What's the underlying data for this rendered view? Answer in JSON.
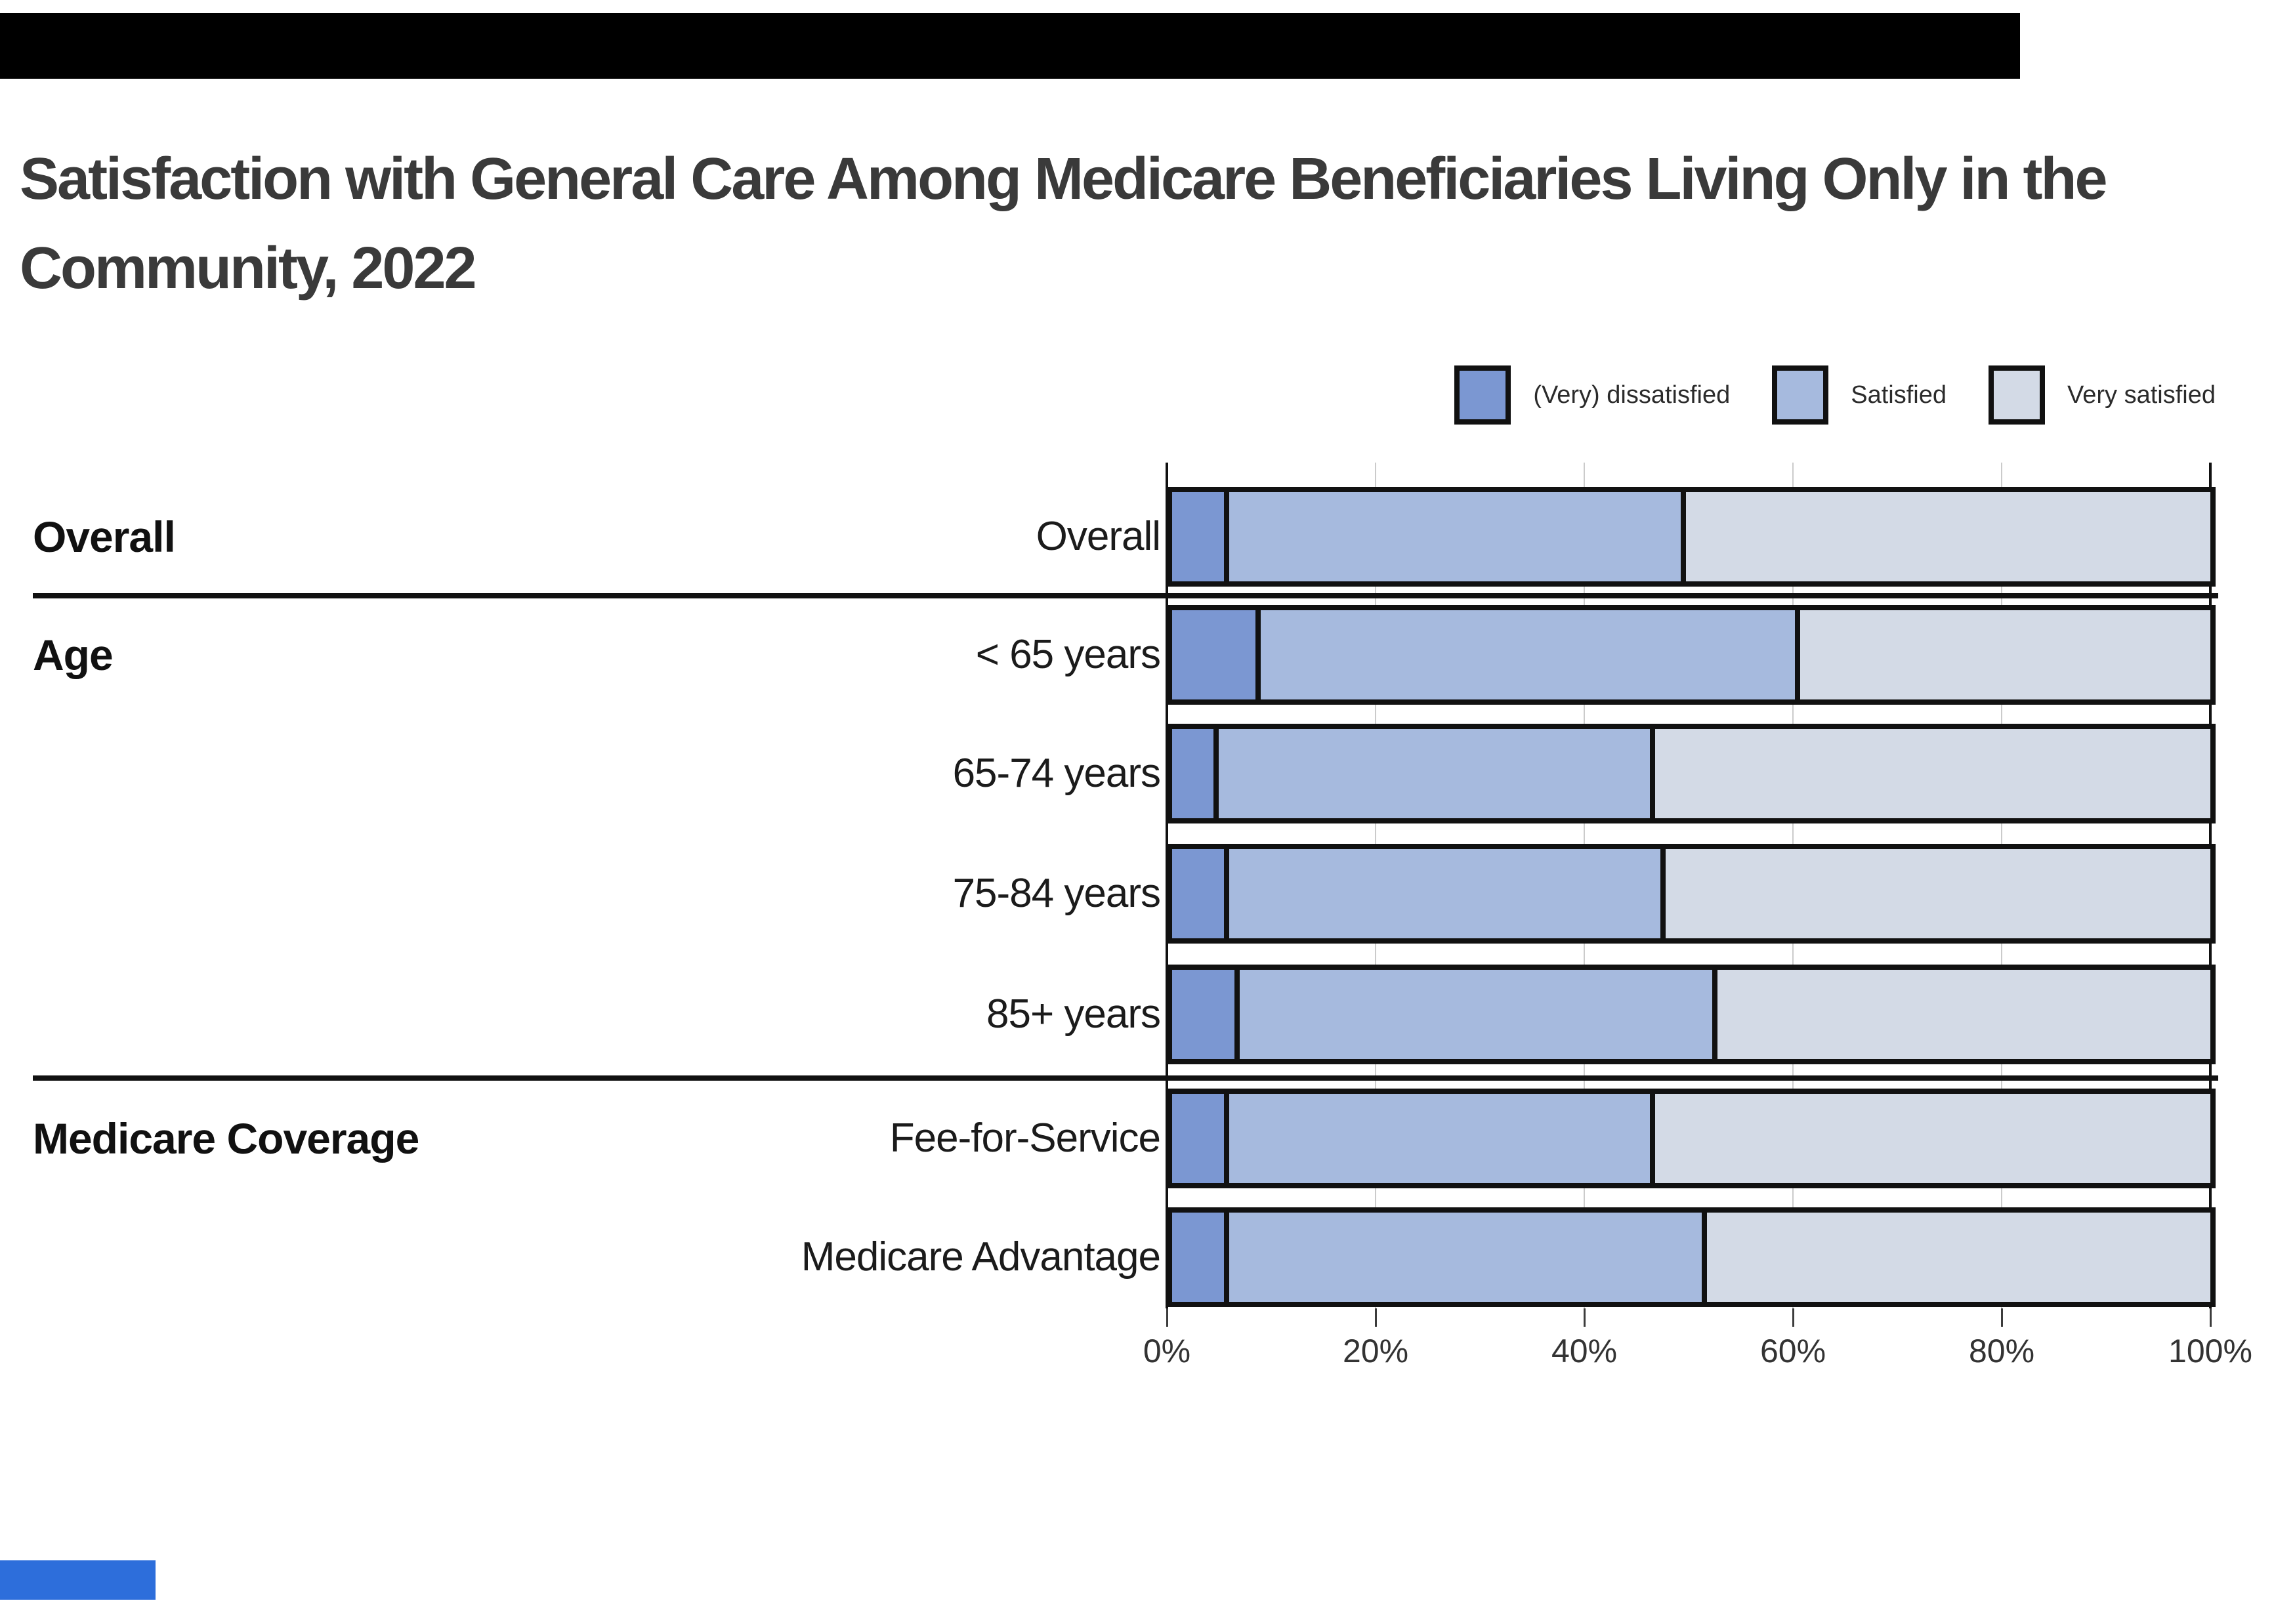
{
  "page": {
    "title": "Satisfaction with General Care Among Medicare Beneficiaries Living Only in the Community, 2022",
    "title_lines": [
      "Satisfaction with General Care Among Medicare Beneficiaries Living Only in the",
      "Community, 2022"
    ]
  },
  "legend": {
    "items": [
      {
        "label": "(Very) dissatisfied",
        "color": "#7b97d2"
      },
      {
        "label": "Satisfied",
        "color": "#a6bade"
      },
      {
        "label": "Very satisfied",
        "color": "#d3dae6"
      }
    ]
  },
  "chart_data": {
    "type": "bar",
    "orientation": "horizontal",
    "stacked": true,
    "title": "Satisfaction with General Care Among Medicare Beneficiaries Living Only in the Community, 2022",
    "categories": [
      "Overall",
      "< 65 years",
      "65-74 years",
      "75-84 years",
      "85+ years",
      "Fee-for-Service",
      "Medicare Advantage"
    ],
    "groups": [
      {
        "name": "Overall",
        "first_row_index": 0
      },
      {
        "name": "Age",
        "first_row_index": 1
      },
      {
        "name": "Medicare Coverage",
        "first_row_index": 5
      }
    ],
    "series": [
      {
        "name": "(Very) dissatisfied",
        "color": "#7b97d2",
        "values": [
          5,
          8,
          4,
          5,
          6,
          5,
          5
        ]
      },
      {
        "name": "Satisfied",
        "color": "#a6bade",
        "values": [
          44,
          52,
          42,
          42,
          46,
          41,
          46
        ]
      },
      {
        "name": "Very satisfied",
        "color": "#d3dae6",
        "values": [
          51,
          40,
          54,
          53,
          48,
          54,
          49
        ]
      }
    ],
    "x_axis": {
      "min": 0,
      "max": 100,
      "unit": "%",
      "ticks": [
        "0%",
        "20%",
        "40%",
        "60%",
        "80%",
        "100%"
      ]
    },
    "grid": true,
    "legend_position": "top-right",
    "border_color": "#111111",
    "gridline_color": "#cbcbcb"
  },
  "decorations": {
    "top_bar_color": "#000000",
    "bottom_bar_color": "#2d6edb"
  }
}
